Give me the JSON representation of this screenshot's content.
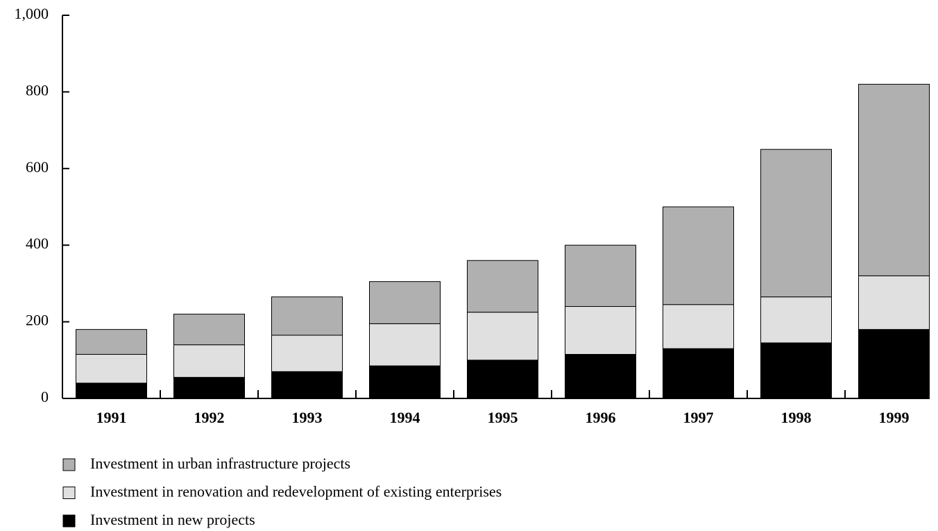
{
  "chart_data": {
    "type": "stacked-bar",
    "categories": [
      "1991",
      "1992",
      "1993",
      "1994",
      "1995",
      "1996",
      "1997",
      "1998",
      "1999"
    ],
    "series": [
      {
        "name": "Investment in new projects",
        "color": "#000000",
        "values": [
          40,
          55,
          70,
          85,
          100,
          115,
          130,
          145,
          180
        ]
      },
      {
        "name": "Investment in renovation and redevelopment of existing enterprises",
        "color": "#e0e0e0",
        "values": [
          75,
          85,
          95,
          110,
          125,
          125,
          115,
          120,
          140
        ]
      },
      {
        "name": "Investment in urban infrastructure projects",
        "color": "#b0b0b0",
        "values": [
          65,
          80,
          100,
          110,
          135,
          160,
          255,
          385,
          500
        ]
      }
    ],
    "ylim": [
      0,
      1000
    ],
    "yticks": [
      0,
      200,
      400,
      600,
      800,
      {
        "value": 1000,
        "label": "1,000"
      }
    ],
    "legend": "bottom-left"
  }
}
